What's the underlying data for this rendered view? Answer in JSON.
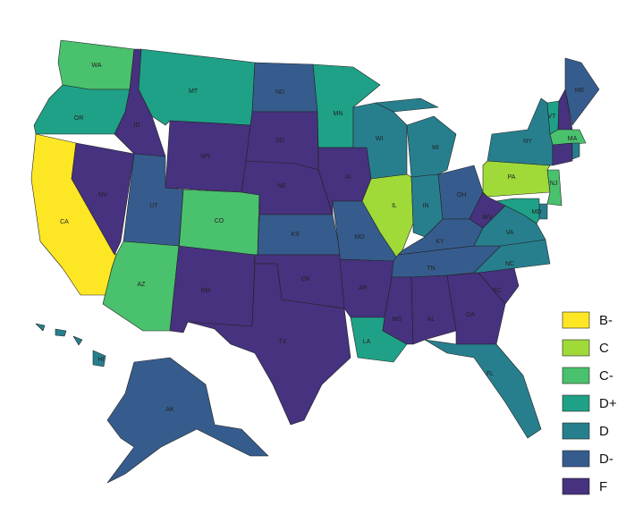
{
  "states": [
    {
      "label": "WA",
      "grade": "C-"
    },
    {
      "label": "OR",
      "grade": "D+"
    },
    {
      "label": "CA",
      "grade": "B-"
    },
    {
      "label": "NV",
      "grade": "F"
    },
    {
      "label": "ID",
      "grade": "F"
    },
    {
      "label": "MT",
      "grade": "D+"
    },
    {
      "label": "WY",
      "grade": "F"
    },
    {
      "label": "UT",
      "grade": "D-"
    },
    {
      "label": "CO",
      "grade": "C-"
    },
    {
      "label": "AZ",
      "grade": "C-"
    },
    {
      "label": "NM",
      "grade": "F"
    },
    {
      "label": "ND",
      "grade": "D-"
    },
    {
      "label": "SD",
      "grade": "F"
    },
    {
      "label": "NE",
      "grade": "F"
    },
    {
      "label": "KS",
      "grade": "D-"
    },
    {
      "label": "OK",
      "grade": "F"
    },
    {
      "label": "TX",
      "grade": "F"
    },
    {
      "label": "MN",
      "grade": "D+"
    },
    {
      "label": "IA",
      "grade": "F"
    },
    {
      "label": "MO",
      "grade": "D-"
    },
    {
      "label": "AR",
      "grade": "F"
    },
    {
      "label": "LA",
      "grade": "D+"
    },
    {
      "label": "WI",
      "grade": "D"
    },
    {
      "label": "IL",
      "grade": "C"
    },
    {
      "label": "MI",
      "grade": "D"
    },
    {
      "label": "IN",
      "grade": "D"
    },
    {
      "label": "OH",
      "grade": "D-"
    },
    {
      "label": "KY",
      "grade": "D-"
    },
    {
      "label": "TN",
      "grade": "D-"
    },
    {
      "label": "MS",
      "grade": "F"
    },
    {
      "label": "AL",
      "grade": "F"
    },
    {
      "label": "GA",
      "grade": "F"
    },
    {
      "label": "FL",
      "grade": "D"
    },
    {
      "label": "SC",
      "grade": "F"
    },
    {
      "label": "NC",
      "grade": "D"
    },
    {
      "label": "VA",
      "grade": "D"
    },
    {
      "label": "WV",
      "grade": "F"
    },
    {
      "label": "PA",
      "grade": "C"
    },
    {
      "label": "NY",
      "grade": "D"
    },
    {
      "label": "VT",
      "grade": "D+"
    },
    {
      "label": null,
      "grade": "F"
    },
    {
      "label": "ME",
      "grade": "D-"
    },
    {
      "label": "MA",
      "grade": "C-"
    },
    {
      "label": null,
      "grade": "F"
    },
    {
      "label": null,
      "grade": "D"
    },
    {
      "label": "NJ",
      "grade": "C-"
    },
    {
      "label": null,
      "grade": "D"
    },
    {
      "label": "MD",
      "grade": "D+"
    },
    {
      "label": "HI",
      "grade": "D"
    },
    {
      "label": "AK",
      "grade": "D-"
    }
  ],
  "legend": [
    {
      "grade": "B-",
      "color": "#fde725"
    },
    {
      "grade": "C",
      "color": "#a0da39"
    },
    {
      "grade": "C-",
      "color": "#4ac16d"
    },
    {
      "grade": "D+",
      "color": "#1fa187"
    },
    {
      "grade": "D",
      "color": "#277f8e"
    },
    {
      "grade": "D-",
      "color": "#365c8d"
    },
    {
      "grade": "F",
      "color": "#46327e"
    }
  ]
}
